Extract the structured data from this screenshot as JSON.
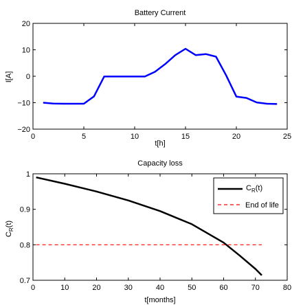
{
  "chart_data": [
    {
      "type": "line",
      "title": "Battery Current",
      "xlabel": "t[h]",
      "ylabel": "I[A]",
      "xlim": [
        0,
        25
      ],
      "ylim": [
        -20,
        20
      ],
      "xticks": [
        "0",
        "5",
        "10",
        "15",
        "20",
        "25"
      ],
      "yticks": [
        "−20",
        "−10",
        "0",
        "10",
        "20"
      ],
      "series": [
        {
          "color": "#0000ff",
          "x": [
            1,
            2,
            3,
            4,
            5,
            6,
            7,
            8,
            9,
            10,
            11,
            12,
            13,
            14,
            15,
            16,
            17,
            18,
            19,
            20,
            21,
            22,
            23,
            24
          ],
          "y": [
            -10,
            -10.3,
            -10.4,
            -10.4,
            -10.4,
            -7.6,
            -0.1,
            -0.1,
            -0.1,
            -0.1,
            -0.1,
            1.7,
            4.6,
            8,
            10.4,
            8,
            8.4,
            7.4,
            0.3,
            -7.7,
            -8.2,
            -9.9,
            -10.4,
            -10.5
          ]
        }
      ]
    },
    {
      "type": "line",
      "title": "Capacity loss",
      "xlabel": "t[months]",
      "ylabel_main": "C",
      "ylabel_sub": "R",
      "ylabel_tail": "(t)",
      "xlim": [
        0,
        80
      ],
      "ylim": [
        0.7,
        1.0
      ],
      "xticks": [
        "0",
        "10",
        "20",
        "30",
        "40",
        "50",
        "60",
        "70",
        "80"
      ],
      "yticks": [
        "0.7",
        "0.8",
        "0.9",
        "1"
      ],
      "legend_position": "top-right",
      "series": [
        {
          "name_main": "C",
          "name_sub": "R",
          "name_tail": "(t)",
          "color": "#000000",
          "style": "solid",
          "x": [
            1,
            10,
            20,
            30,
            40,
            50,
            60,
            65,
            70,
            72
          ],
          "y": [
            0.99,
            0.972,
            0.95,
            0.925,
            0.895,
            0.858,
            0.806,
            0.77,
            0.732,
            0.714
          ]
        },
        {
          "name": "End of life",
          "color": "#ff0000",
          "style": "dashed",
          "x": [
            1,
            72
          ],
          "y": [
            0.8,
            0.8
          ]
        }
      ]
    }
  ]
}
